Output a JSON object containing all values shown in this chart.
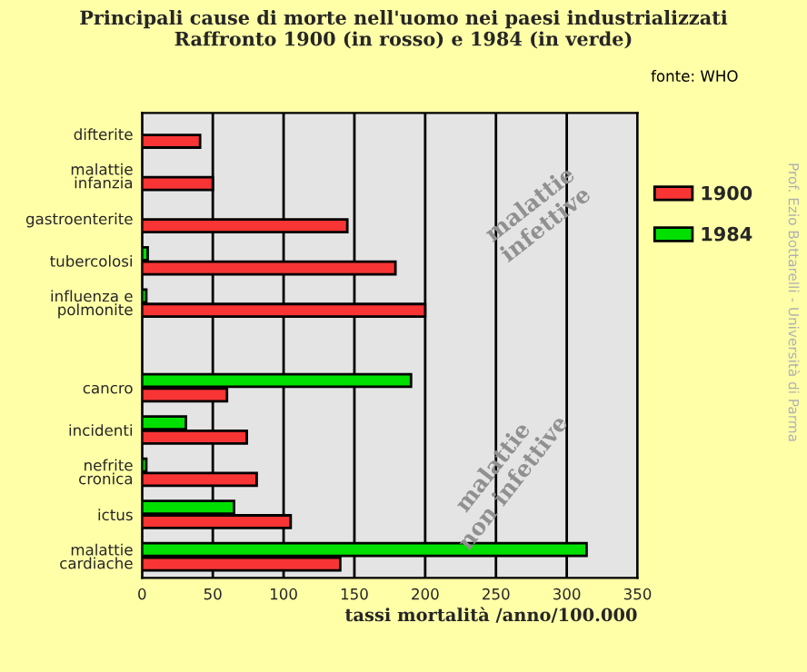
{
  "chart_data": {
    "type": "bar",
    "orientation": "horizontal",
    "title": "Principali cause di morte nell'uomo nei paesi industrializzati\nRaffronto 1900 (in rosso) e 1984 (in verde)",
    "xlabel": "tassi mortalità /anno/100.000",
    "categories": [
      "difterite",
      "malattie\ninfanzia",
      "gastroenterite",
      "tubercolosi",
      "influenza e\npolmonite",
      null,
      "cancro",
      "incidenti",
      "nefrite\ncronica",
      "ictus",
      "malattie\ncardiache"
    ],
    "series": [
      {
        "name": "1900",
        "color": "#f83434",
        "values": [
          41,
          50,
          145,
          179,
          200,
          null,
          60,
          74,
          81,
          105,
          140
        ]
      },
      {
        "name": "1984",
        "color": "#00e000",
        "values": [
          null,
          null,
          null,
          4,
          3,
          null,
          190,
          31,
          3,
          65,
          314
        ]
      }
    ],
    "xlim": [
      0,
      350
    ],
    "xticks": [
      0,
      50,
      100,
      150,
      200,
      250,
      300,
      350
    ],
    "grid": "x",
    "legend": "right",
    "annotations": [
      "malattie\ninfettive",
      "malattie\nnon infettive",
      "fonte: WHO",
      "Prof. Ezio Bottarelli - Università di Parma"
    ]
  }
}
